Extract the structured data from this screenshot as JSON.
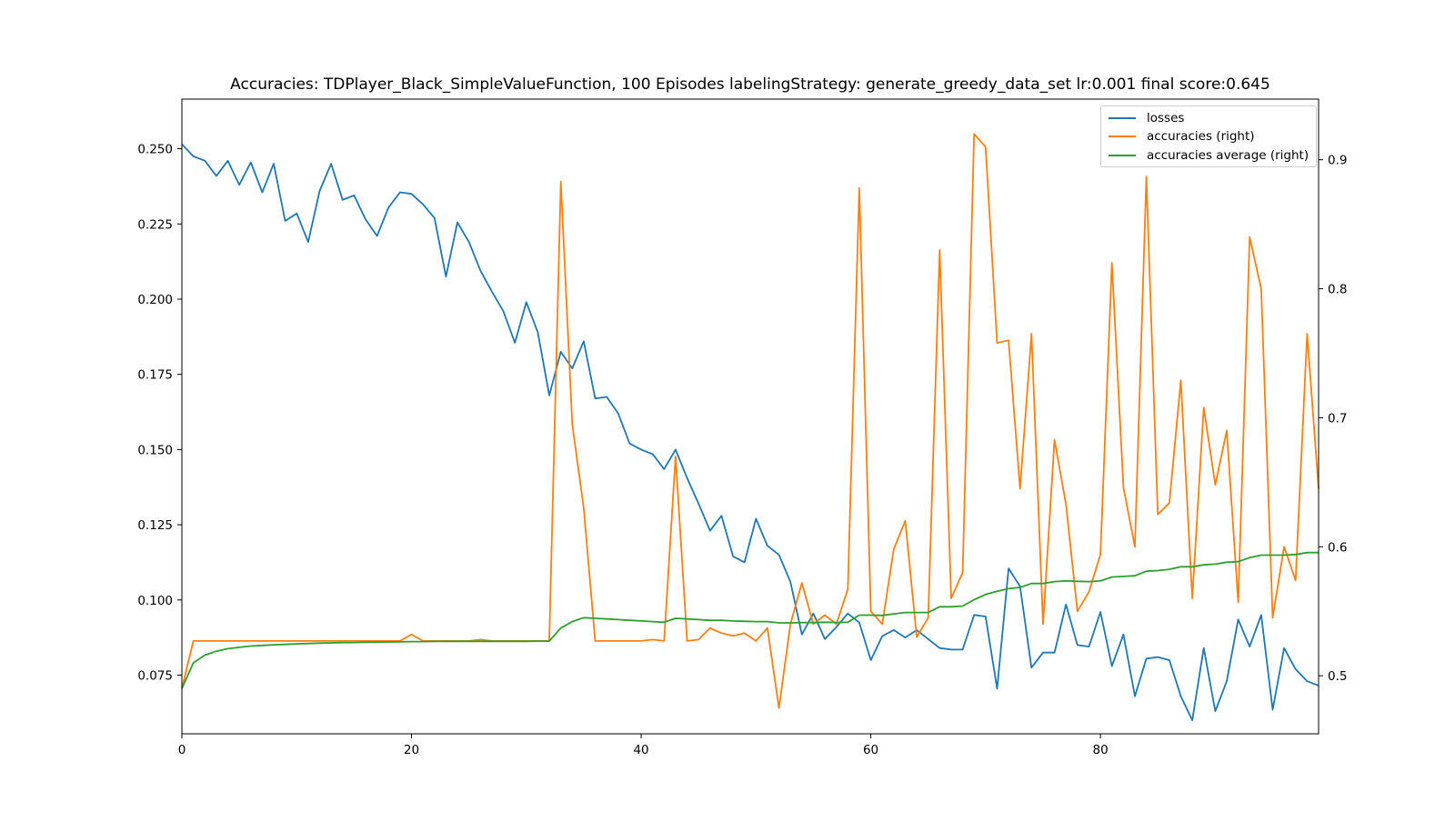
{
  "chart_data": {
    "type": "line",
    "title": "Accuracies: TDPlayer_Black_SimpleValueFunction, 100 Episodes labelingStrategy: generate_greedy_data_set lr:0.001 final score:0.645",
    "xlabel": "",
    "ylabel": "",
    "xlim": [
      0,
      99
    ],
    "xticks": [
      "0",
      "20",
      "40",
      "60",
      "80"
    ],
    "ylim_left": [
      0.0555,
      0.2665
    ],
    "ylim_right": [
      0.455,
      0.947
    ],
    "yticks_left": [
      "0.075",
      "0.100",
      "0.125",
      "0.150",
      "0.175",
      "0.200",
      "0.225",
      "0.250"
    ],
    "yticks_right": [
      "0.5",
      "0.6",
      "0.7",
      "0.8",
      "0.9"
    ],
    "grid": false,
    "legend_position": "top-right",
    "colors": {
      "losses": "#1f77b4",
      "accuracies": "#ff7f0e",
      "accuracies_average": "#2ca02c"
    },
    "series": [
      {
        "name": "losses",
        "axis": "left",
        "values": [
          0.2515,
          0.2475,
          0.246,
          0.241,
          0.246,
          0.238,
          0.2455,
          0.2355,
          0.245,
          0.226,
          0.2285,
          0.219,
          0.236,
          0.245,
          0.233,
          0.2345,
          0.2265,
          0.221,
          0.2305,
          0.2355,
          0.235,
          0.2315,
          0.227,
          0.2075,
          0.2255,
          0.219,
          0.2095,
          0.2025,
          0.196,
          0.1855,
          0.199,
          0.189,
          0.168,
          0.1825,
          0.177,
          0.186,
          0.167,
          0.1675,
          0.162,
          0.152,
          0.15,
          0.1485,
          0.1435,
          0.15,
          0.1405,
          0.132,
          0.123,
          0.128,
          0.1145,
          0.1125,
          0.127,
          0.118,
          0.115,
          0.106,
          0.0885,
          0.0955,
          0.087,
          0.091,
          0.0955,
          0.0925,
          0.08,
          0.088,
          0.09,
          0.0875,
          0.09,
          0.087,
          0.084,
          0.0835,
          0.0835,
          0.095,
          0.0945,
          0.0705,
          0.1105,
          0.1045,
          0.0775,
          0.0825,
          0.0825,
          0.0985,
          0.085,
          0.0845,
          0.096,
          0.078,
          0.0885,
          0.068,
          0.0805,
          0.081,
          0.08,
          0.068,
          0.06,
          0.084,
          0.063,
          0.073,
          0.0935,
          0.0845,
          0.095,
          0.0635,
          0.084,
          0.077,
          0.073,
          0.0715
        ]
      },
      {
        "name": "accuracies (right)",
        "axis": "right",
        "values": [
          0.49,
          0.527,
          0.527,
          0.527,
          0.527,
          0.527,
          0.527,
          0.527,
          0.527,
          0.527,
          0.527,
          0.527,
          0.527,
          0.527,
          0.527,
          0.527,
          0.527,
          0.527,
          0.527,
          0.527,
          0.532,
          0.527,
          0.527,
          0.527,
          0.527,
          0.527,
          0.528,
          0.527,
          0.527,
          0.527,
          0.527,
          0.527,
          0.527,
          0.883,
          0.695,
          0.63,
          0.527,
          0.527,
          0.527,
          0.527,
          0.527,
          0.528,
          0.527,
          0.67,
          0.527,
          0.528,
          0.537,
          0.533,
          0.531,
          0.533,
          0.527,
          0.537,
          0.475,
          0.54,
          0.572,
          0.54,
          0.547,
          0.54,
          0.567,
          0.878,
          0.55,
          0.54,
          0.598,
          0.62,
          0.53,
          0.545,
          0.83,
          0.56,
          0.58,
          0.92,
          0.91,
          0.758,
          0.76,
          0.645,
          0.765,
          0.54,
          0.683,
          0.633,
          0.55,
          0.565,
          0.594,
          0.82,
          0.646,
          0.6,
          0.887,
          0.625,
          0.634,
          0.729,
          0.56,
          0.708,
          0.648,
          0.69,
          0.557,
          0.84,
          0.8,
          0.545,
          0.6,
          0.574,
          0.765,
          0.645
        ]
      },
      {
        "name": "accuracies average (right)",
        "axis": "right",
        "values": [
          0.49,
          0.51,
          0.516,
          0.519,
          0.521,
          0.522,
          0.523,
          0.5235,
          0.524,
          0.5243,
          0.5247,
          0.525,
          0.5253,
          0.5255,
          0.5257,
          0.5258,
          0.526,
          0.5261,
          0.5262,
          0.5263,
          0.5265,
          0.5265,
          0.5266,
          0.5266,
          0.5267,
          0.5267,
          0.5267,
          0.5267,
          0.5267,
          0.5267,
          0.5267,
          0.5268,
          0.5268,
          0.537,
          0.542,
          0.545,
          0.5445,
          0.544,
          0.5435,
          0.543,
          0.5425,
          0.542,
          0.5415,
          0.5445,
          0.544,
          0.5435,
          0.543,
          0.543,
          0.5425,
          0.5422,
          0.542,
          0.542,
          0.541,
          0.541,
          0.5413,
          0.5412,
          0.5415,
          0.5413,
          0.5415,
          0.547,
          0.547,
          0.5468,
          0.548,
          0.549,
          0.549,
          0.549,
          0.5535,
          0.5535,
          0.554,
          0.559,
          0.563,
          0.5655,
          0.5675,
          0.5685,
          0.5715,
          0.5715,
          0.573,
          0.5735,
          0.5732,
          0.573,
          0.5735,
          0.5765,
          0.577,
          0.5775,
          0.581,
          0.5815,
          0.5825,
          0.5845,
          0.5845,
          0.586,
          0.5865,
          0.588,
          0.5885,
          0.5915,
          0.5935,
          0.5935,
          0.5935,
          0.594,
          0.5955,
          0.5955
        ]
      }
    ]
  }
}
